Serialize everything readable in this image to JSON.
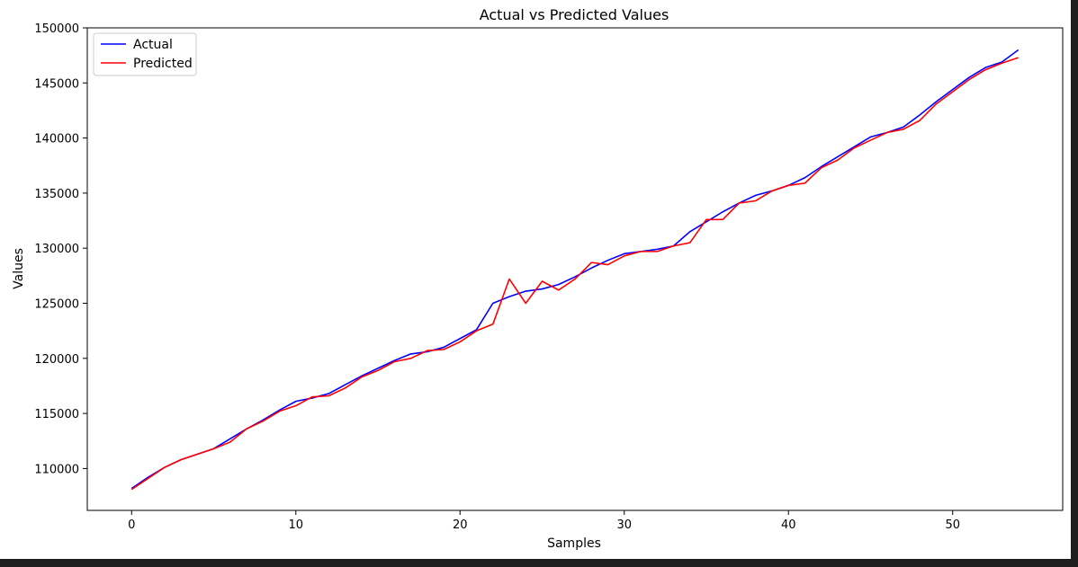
{
  "chart_data": {
    "type": "line",
    "title": "Actual vs Predicted Values",
    "xlabel": "Samples",
    "ylabel": "Values",
    "xlim": [
      -2.7,
      56.7
    ],
    "ylim": [
      106200,
      150000
    ],
    "xticks": [
      0,
      10,
      20,
      30,
      40,
      50
    ],
    "yticks": [
      110000,
      115000,
      120000,
      125000,
      130000,
      135000,
      140000,
      145000,
      150000
    ],
    "legend": "upper-left",
    "grid": false,
    "x": [
      0,
      1,
      2,
      3,
      4,
      5,
      6,
      7,
      8,
      9,
      10,
      11,
      12,
      13,
      14,
      15,
      16,
      17,
      18,
      19,
      20,
      21,
      22,
      23,
      24,
      25,
      26,
      27,
      28,
      29,
      30,
      31,
      32,
      33,
      34,
      35,
      36,
      37,
      38,
      39,
      40,
      41,
      42,
      43,
      44,
      45,
      46,
      47,
      48,
      49,
      50,
      51,
      52,
      53,
      54
    ],
    "series": [
      {
        "name": "Actual",
        "color": "#0000ff",
        "values": [
          108200,
          109200,
          110100,
          110800,
          111300,
          111800,
          112700,
          113600,
          114400,
          115300,
          116100,
          116400,
          116800,
          117600,
          118400,
          119100,
          119800,
          120400,
          120600,
          121000,
          121800,
          122600,
          125000,
          125600,
          126100,
          126300,
          126700,
          127400,
          128200,
          128900,
          129500,
          129700,
          129900,
          130200,
          131500,
          132400,
          133300,
          134100,
          134800,
          135200,
          135700,
          136400,
          137400,
          138300,
          139200,
          140100,
          140500,
          141000,
          142100,
          143300,
          144400,
          145500,
          146400,
          146900,
          148000
        ]
      },
      {
        "name": "Predicted",
        "color": "#ff0000",
        "values": [
          108100,
          109100,
          110100,
          110800,
          111300,
          111800,
          112400,
          113600,
          114300,
          115200,
          115700,
          116500,
          116600,
          117300,
          118300,
          118900,
          119700,
          120000,
          120700,
          120800,
          121500,
          122500,
          123100,
          127200,
          125000,
          127000,
          126200,
          127200,
          128700,
          128500,
          129300,
          129700,
          129700,
          130200,
          130500,
          132600,
          132600,
          134100,
          134300,
          135200,
          135700,
          135900,
          137300,
          138000,
          139100,
          139800,
          140500,
          140800,
          141600,
          143100,
          144200,
          145300,
          146200,
          146800,
          147300
        ]
      }
    ]
  }
}
